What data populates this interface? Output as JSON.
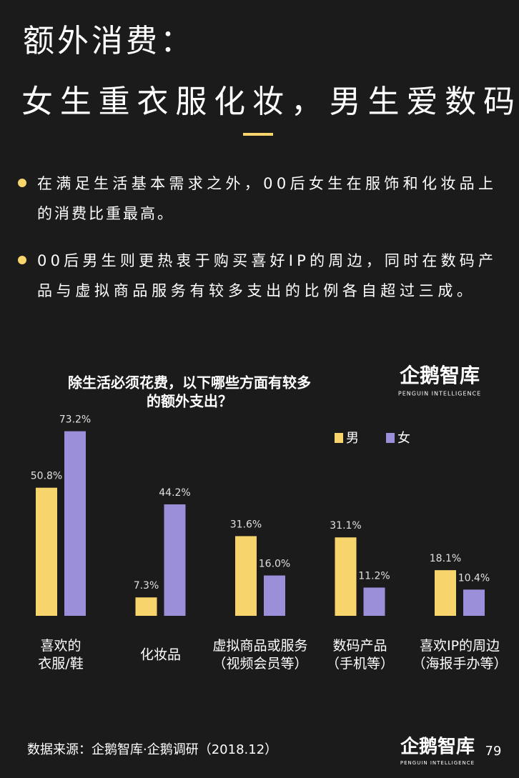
{
  "title": [
    "额外消费：",
    "女生重衣服化妆，男生爱数码"
  ],
  "bullets": [
    [
      "在满足生活基本需求之外，00后女生在服饰和化妆品上",
      "的消费比重最高。"
    ],
    [
      "00后男生则更热衷于购买喜好IP的周边，同时在数码产",
      "品与虚拟商品服务有较多支出的比例各自超过三成。"
    ]
  ],
  "logo": {
    "name": "企鹅智库",
    "subtitle": "PENGUIN INTELLIGENCE"
  },
  "chart_data": {
    "type": "bar",
    "title": [
      "除生活必须花费，以下哪些方面有较多",
      "的额外支出？"
    ],
    "categories": [
      [
        "喜欢的",
        "衣服/鞋"
      ],
      [
        "化妆品"
      ],
      [
        "虚拟商品或服务",
        "（视频会员等）"
      ],
      [
        "数码产品",
        "（手机等）"
      ],
      [
        "喜欢IP的周边",
        "（海报手办等）"
      ]
    ],
    "series": [
      {
        "name": "男",
        "color": "#f7d46c",
        "values": [
          50.8,
          7.3,
          31.6,
          31.1,
          18.1
        ],
        "value_labels": [
          "50.8%",
          "7.3%",
          "31.6%",
          "31.1%",
          "18.1%"
        ]
      },
      {
        "name": "女",
        "color": "#9a8fd8",
        "values": [
          73.2,
          44.2,
          16.0,
          11.2,
          10.4
        ],
        "value_labels": [
          "73.2%",
          "44.2%",
          "16.0%",
          "11.2%",
          "10.4%"
        ]
      }
    ]
  },
  "source": "数据来源：企鹅智库·企鹅调研（2018.12）",
  "page_number": "79"
}
